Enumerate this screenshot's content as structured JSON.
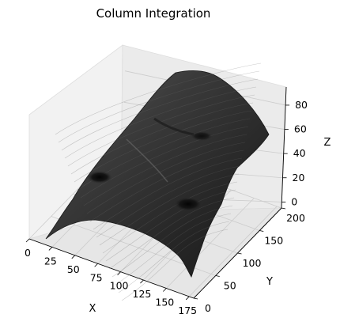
{
  "chart_data": {
    "type": "surface3d",
    "title": "Column Integration",
    "xlabel": "X",
    "ylabel": "Y",
    "zlabel": "Z",
    "x_ticks": [
      "0",
      "25",
      "50",
      "75",
      "100",
      "125",
      "150",
      "175"
    ],
    "y_ticks": [
      "0",
      "50",
      "100",
      "150",
      "200"
    ],
    "z_ticks": [
      "0",
      "20",
      "40",
      "60",
      "80"
    ],
    "xlim": [
      0,
      180
    ],
    "ylim": [
      0,
      200
    ],
    "zlim": [
      -5,
      95
    ],
    "grid": true,
    "colormap": "gray",
    "surface_color": "#2b2b2b",
    "pane_color": "#f2f2f2",
    "grid_color": "#cccccc"
  }
}
